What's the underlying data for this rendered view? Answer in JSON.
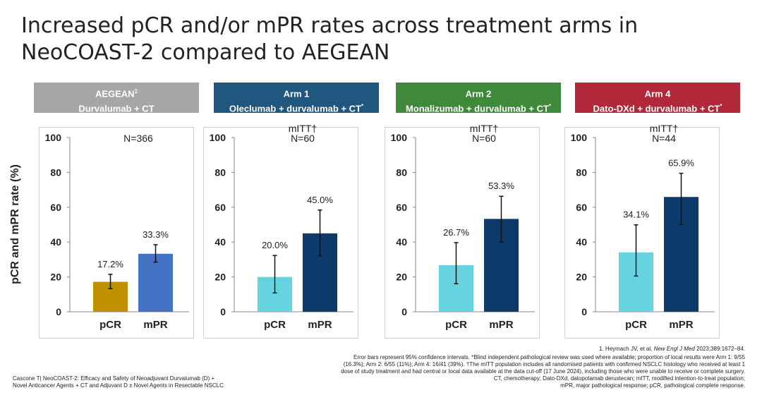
{
  "title": {
    "line1": "Increased pCR and/or mPR rates across treatment arms in",
    "line2": "NeoCOAST-2 compared to AEGEAN"
  },
  "y_axis_label": "pCR and mPR rate (%)",
  "arms": [
    {
      "header": "AEGEAN",
      "header_sup": "1",
      "subheader": "Durvalumab + CT",
      "subheader_sup": "",
      "color": "#a7a5a6"
    },
    {
      "header": "Arm 1",
      "header_sup": "",
      "subheader": "Oleclumab + durvalumab + CT",
      "subheader_sup": "*",
      "color": "#20577e"
    },
    {
      "header": "Arm 2",
      "header_sup": "",
      "subheader": "Monalizumab + durvalumab + CT",
      "subheader_sup": "*",
      "color": "#3f8a3a"
    },
    {
      "header": "Arm 4",
      "header_sup": "",
      "subheader": "Dato-DXd + durvalumab + CT",
      "subheader_sup": "*",
      "color": "#b0283a"
    }
  ],
  "chart_data": [
    {
      "type": "bar",
      "categories": [
        "pCR",
        "mPR"
      ],
      "values": [
        17.2,
        33.3
      ],
      "error_low": [
        13.3,
        28.5
      ],
      "error_high": [
        21.5,
        38.5
      ],
      "value_labels": [
        "17.2%",
        "33.3%"
      ],
      "colors": [
        "#bf9000",
        "#4472c4"
      ],
      "annotation_line1": "",
      "annotation_line2": "N=366",
      "ylim": [
        0,
        100
      ],
      "yticks": [
        "0",
        "20",
        "40",
        "60",
        "80",
        "100"
      ]
    },
    {
      "type": "bar",
      "categories": [
        "pCR",
        "mPR"
      ],
      "values": [
        20.0,
        45.0
      ],
      "error_low": [
        10.8,
        32.1
      ],
      "error_high": [
        32.3,
        58.4
      ],
      "value_labels": [
        "20.0%",
        "45.0%"
      ],
      "colors": [
        "#66d3e0",
        "#0b3a6b"
      ],
      "annotation_line1": "mITT†",
      "annotation_line2": "N=60",
      "ylim": [
        0,
        100
      ],
      "yticks": [
        "0",
        "20",
        "40",
        "60",
        "80",
        "100"
      ]
    },
    {
      "type": "bar",
      "categories": [
        "pCR",
        "mPR"
      ],
      "values": [
        26.7,
        53.3
      ],
      "error_low": [
        16.1,
        40.0
      ],
      "error_high": [
        39.7,
        66.3
      ],
      "value_labels": [
        "26.7%",
        "53.3%"
      ],
      "colors": [
        "#66d3e0",
        "#0b3a6b"
      ],
      "annotation_line1": "mITT†",
      "annotation_line2": "N=60",
      "ylim": [
        0,
        100
      ],
      "yticks": [
        "0",
        "20",
        "40",
        "60",
        "80",
        "100"
      ]
    },
    {
      "type": "bar",
      "categories": [
        "pCR",
        "mPR"
      ],
      "values": [
        34.1,
        65.9
      ],
      "error_low": [
        20.5,
        50.1
      ],
      "error_high": [
        49.9,
        79.5
      ],
      "value_labels": [
        "34.1%",
        "65.9%"
      ],
      "colors": [
        "#66d3e0",
        "#0b3a6b"
      ],
      "annotation_line1": "mITT†",
      "annotation_line2": "N=44",
      "ylim": [
        0,
        100
      ],
      "yticks": [
        "0",
        "20",
        "40",
        "60",
        "80",
        "100"
      ]
    }
  ],
  "footer_left": {
    "line1": "Cascone T| NeoCOAST-2: Efficacy and Safety of Neoadjuvant Durvalumab (D) +",
    "line2": "Novel Anticancer Agents + CT and Adjuvant D ± Novel Agents in Resectable NSCLC"
  },
  "footer_right": {
    "ref_pre": "1. Heymach JV, et al. ",
    "ref_journal": "New Engl J Med",
    "ref_post": " 2023;389:1672–84.",
    "l1": "Error bars represent 95% confidence intervals. *Blind independent pathological review was used where available; proportion of local results were Arm 1: 9/55",
    "l2": "(16.3%); Arm 2: 6/55 (11%); Arm 4: 16/41 (39%). †The mITT population includes all randomised patients with confirmed NSCLC histology who received at least 1",
    "l3": "dose of study treatment and had central or local data available at the data cut-off (17 June 2024), including those who were unable to receive or complete surgery.",
    "l4": "CT, chemotherapy; Dato-DXd, datopotamab deruxtecan; mITT, modified intention-to-treat population;",
    "l5": "mPR, major pathological response; pCR, pathological complete response."
  }
}
